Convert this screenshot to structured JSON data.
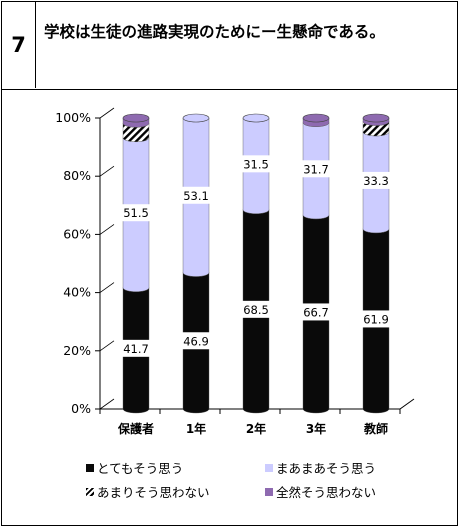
{
  "question": {
    "number": "7",
    "text": "学校は生徒の進路実現のためにー生懸命である。"
  },
  "chart_data": {
    "type": "bar",
    "stacked": true,
    "categories": [
      "保護者",
      "1年",
      "2年",
      "3年",
      "教師"
    ],
    "series": [
      {
        "name": "とてもそう思う",
        "color": "#0a0a0a",
        "values": [
          41.7,
          46.9,
          68.5,
          66.7,
          61.9
        ]
      },
      {
        "name": "まあまあそう思う",
        "color": "#ccccff",
        "values": [
          51.5,
          53.1,
          31.5,
          31.7,
          33.3
        ]
      },
      {
        "name": "あまりそう思わない",
        "color": "#ffffff",
        "pattern": "hatch",
        "values": [
          5.0,
          0,
          0,
          0,
          3.6
        ]
      },
      {
        "name": "全然そう思わない",
        "color": "#8e6ab0",
        "values": [
          1.8,
          0,
          0,
          1.6,
          1.2
        ]
      }
    ],
    "value_labels_shown_for": [
      "とてもそう思う",
      "まあまあそう思う"
    ],
    "ylim": [
      0,
      100
    ],
    "yticks": [
      "0%",
      "20%",
      "40%",
      "60%",
      "80%",
      "100%"
    ],
    "legend_position": "bottom"
  }
}
